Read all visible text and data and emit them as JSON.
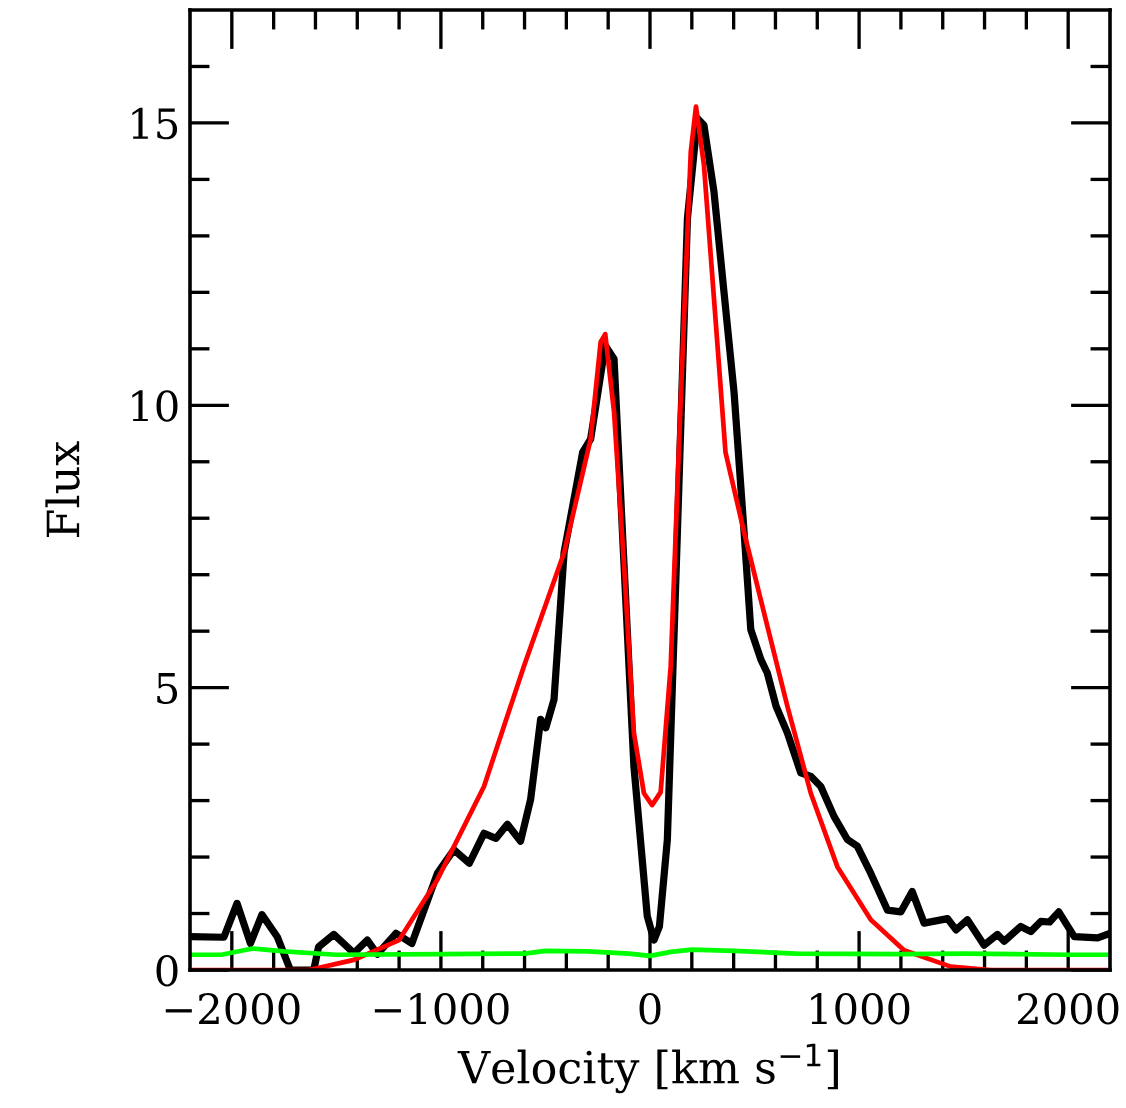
{
  "chart_data": {
    "type": "line",
    "xlabel": "Velocity [km s$^{−1}$]",
    "ylabel": "Flux",
    "xlim": [
      -2200,
      2200
    ],
    "ylim": [
      0,
      17
    ],
    "xticks": [
      -2000,
      {
        "value": -1800,
        "label": null
      },
      {
        "value": -1600,
        "label": null
      },
      {
        "value": -1400,
        "label": null
      },
      {
        "value": -1200,
        "label": null
      },
      -1000,
      {
        "value": -800,
        "label": null
      },
      {
        "value": -600,
        "label": null
      },
      {
        "value": -400,
        "label": null
      },
      {
        "value": -200,
        "label": null
      },
      0,
      {
        "value": 200,
        "label": null
      },
      {
        "value": 400,
        "label": null
      },
      {
        "value": 600,
        "label": null
      },
      {
        "value": 800,
        "label": null
      },
      1000,
      {
        "value": 1200,
        "label": null
      },
      {
        "value": 1400,
        "label": null
      },
      {
        "value": 1600,
        "label": null
      },
      {
        "value": 1800,
        "label": null
      },
      2000
    ],
    "yticks": [
      0,
      {
        "value": 1,
        "label": null
      },
      {
        "value": 2,
        "label": null
      },
      {
        "value": 3,
        "label": null
      },
      {
        "value": 4,
        "label": null
      },
      5,
      {
        "value": 6,
        "label": null
      },
      {
        "value": 7,
        "label": null
      },
      {
        "value": 8,
        "label": null
      },
      {
        "value": 9,
        "label": null
      },
      10,
      {
        "value": 11,
        "label": null
      },
      {
        "value": 12,
        "label": null
      },
      {
        "value": 13,
        "label": null
      },
      {
        "value": 14,
        "label": null
      },
      15,
      {
        "value": 16,
        "label": null
      }
    ],
    "grid": false,
    "legend": false,
    "marker": "none",
    "line_style": "solid",
    "series": [
      {
        "color": "#000000",
        "x": [
          -2200,
          -2038,
          -1975,
          -1911,
          -1856,
          -1783,
          -1720,
          -1608,
          -1585,
          -1512,
          -1416,
          -1352,
          -1304,
          -1215,
          -1139,
          -1017,
          -938,
          -864,
          -794,
          -737,
          -682,
          -619,
          -571,
          -523,
          -498,
          -459,
          -411,
          -322,
          -284,
          -214,
          -172,
          -124,
          -77,
          -13,
          19,
          45,
          83,
          131,
          179,
          227,
          258,
          306,
          354,
          402,
          450,
          482,
          530,
          561,
          603,
          657,
          721,
          769,
          817,
          880,
          944,
          992,
          1056,
          1136,
          1200,
          1254,
          1311,
          1423,
          1464,
          1518,
          1598,
          1662,
          1694,
          1773,
          1821,
          1869,
          1911,
          1955,
          2029,
          2141,
          2200
        ],
        "values": [
          0.59,
          0.58,
          1.18,
          0.47,
          0.98,
          0.59,
          0,
          0,
          0.41,
          0.63,
          0.3,
          0.53,
          0.28,
          0.65,
          0.47,
          1.71,
          2.13,
          1.89,
          2.42,
          2.33,
          2.58,
          2.28,
          3.02,
          4.44,
          4.29,
          4.79,
          7.39,
          9.17,
          9.4,
          11.06,
          10.82,
          7.16,
          3.61,
          0.95,
          0.53,
          0.77,
          2.31,
          7.75,
          13.31,
          15.08,
          14.96,
          13.78,
          12.0,
          10.23,
          7.75,
          6.03,
          5.5,
          5.26,
          4.67,
          4.2,
          3.49,
          3.43,
          3.25,
          2.72,
          2.31,
          2.19,
          1.71,
          1.06,
          1.03,
          1.39,
          0.83,
          0.91,
          0.71,
          0.89,
          0.44,
          0.63,
          0.51,
          0.77,
          0.68,
          0.86,
          0.85,
          1.03,
          0.59,
          0.57,
          0.65
        ]
      },
      {
        "color": "#ff0000",
        "x": [
          -2200,
          -1630,
          -1416,
          -1200,
          -1017,
          -794,
          -603,
          -411,
          -284,
          -236,
          -214,
          -172,
          -124,
          -77,
          -29,
          10,
          51,
          99,
          147,
          195,
          220,
          258,
          306,
          361,
          450,
          545,
          657,
          769,
          896,
          1056,
          1215,
          1438,
          1630,
          2200
        ],
        "values": [
          0,
          0,
          0.18,
          0.53,
          1.6,
          3.25,
          5.38,
          7.39,
          9.4,
          11.12,
          11.26,
          9.88,
          7.16,
          4.2,
          3.13,
          2.92,
          3.15,
          5.38,
          10.11,
          14.49,
          15.29,
          14.25,
          11.89,
          9.17,
          7.75,
          6.33,
          4.67,
          3.13,
          1.83,
          0.89,
          0.35,
          0.06,
          0,
          0
        ]
      },
      {
        "color": "#00ff00",
        "x": [
          -2200,
          -2050,
          -1900,
          -1750,
          -1500,
          -1000,
          -600,
          -500,
          -300,
          -100,
          0,
          100,
          200,
          400,
          700,
          1200,
          1500,
          2000,
          2200
        ],
        "values": [
          0.27,
          0.27,
          0.38,
          0.33,
          0.27,
          0.28,
          0.29,
          0.34,
          0.33,
          0.29,
          0.25,
          0.32,
          0.36,
          0.34,
          0.29,
          0.28,
          0.29,
          0.27,
          0.27
        ]
      }
    ]
  }
}
